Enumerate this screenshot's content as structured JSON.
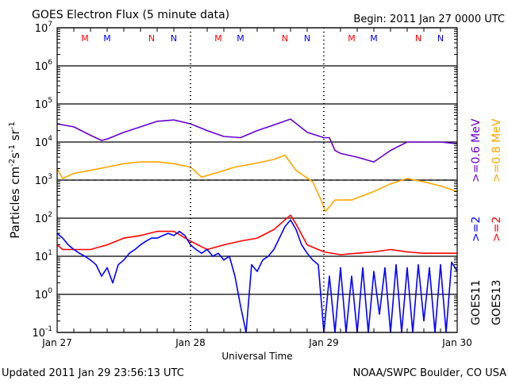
{
  "chart_data": {
    "type": "line",
    "title": "GOES Electron Flux (5 minute data)",
    "begin_label": "Begin: 2011 Jan 27 0000 UTC",
    "xlabel": "Universal Time",
    "ylabel": "Particles cm-2s-1sr-1",
    "ylabel_parts": {
      "base": "Particles cm",
      "e1": "-2",
      "s": "s",
      "e2": "-1",
      "sr": " sr",
      "e3": "-1"
    },
    "xlim_hours": [
      0,
      72
    ],
    "ylim": [
      0.1,
      10000000
    ],
    "y_scale": "log",
    "y_ticks": [
      {
        "base": "10",
        "exp": "7"
      },
      {
        "base": "10",
        "exp": "6"
      },
      {
        "base": "10",
        "exp": "5"
      },
      {
        "base": "10",
        "exp": "4"
      },
      {
        "base": "10",
        "exp": "3"
      },
      {
        "base": "10",
        "exp": "2"
      },
      {
        "base": "10",
        "exp": "1"
      },
      {
        "base": "10",
        "exp": "0"
      },
      {
        "base": "10",
        "exp": "-1"
      }
    ],
    "x_ticks": [
      {
        "hour": 0,
        "label": "Jan 27"
      },
      {
        "hour": 24,
        "label": "Jan 28"
      },
      {
        "hour": 48,
        "label": "Jan 29"
      },
      {
        "hour": 72,
        "label": "Jan 30"
      }
    ],
    "grid": "horizontal per decade",
    "threshold": {
      "value": 1000,
      "style": "dashed"
    },
    "markers": [
      {
        "hour": 5,
        "label": "M",
        "color": "#ff0000"
      },
      {
        "hour": 9,
        "label": "M",
        "color": "#0000ff"
      },
      {
        "hour": 17,
        "label": "N",
        "color": "#ff0000"
      },
      {
        "hour": 21,
        "label": "N",
        "color": "#0000ff"
      },
      {
        "hour": 29,
        "label": "M",
        "color": "#ff0000"
      },
      {
        "hour": 33,
        "label": "M",
        "color": "#0000ff"
      },
      {
        "hour": 41,
        "label": "N",
        "color": "#ff0000"
      },
      {
        "hour": 45,
        "label": "N",
        "color": "#0000ff"
      },
      {
        "hour": 53,
        "label": "M",
        "color": "#ff0000"
      },
      {
        "hour": 57,
        "label": "M",
        "color": "#0000ff"
      },
      {
        "hour": 65,
        "label": "N",
        "color": "#ff0000"
      },
      {
        "hour": 69,
        "label": "N",
        "color": "#0000ff"
      }
    ],
    "legend": {
      "placement": "right",
      "col1": {
        "energy_a": ">=0.6 MeV",
        "energy_b": ">=2",
        "sat": "GOES11"
      },
      "col2": {
        "energy_a": ">=0.8 MeV",
        "energy_b": ">=2",
        "sat": "GOES13"
      }
    },
    "series": [
      {
        "name": "GOES13 >=0.6 MeV",
        "color": "#6600cc",
        "points": [
          [
            0,
            30000
          ],
          [
            3,
            25000
          ],
          [
            6,
            15000
          ],
          [
            8,
            11000
          ],
          [
            9,
            12000
          ],
          [
            12,
            18000
          ],
          [
            15,
            25000
          ],
          [
            18,
            35000
          ],
          [
            21,
            38000
          ],
          [
            24,
            30000
          ],
          [
            27,
            20000
          ],
          [
            30,
            14000
          ],
          [
            33,
            13000
          ],
          [
            36,
            20000
          ],
          [
            39,
            28000
          ],
          [
            42,
            40000
          ],
          [
            45,
            18000
          ],
          [
            48,
            13000
          ],
          [
            49,
            13000
          ],
          [
            50,
            6000
          ],
          [
            51,
            5000
          ],
          [
            54,
            4000
          ],
          [
            57,
            3000
          ],
          [
            60,
            6000
          ],
          [
            63,
            10000
          ],
          [
            66,
            10000
          ],
          [
            69,
            10000
          ],
          [
            72,
            9000
          ]
        ]
      },
      {
        "name": "GOES13 >=0.8 MeV",
        "color": "#ffa500",
        "points": [
          [
            0,
            2000
          ],
          [
            1,
            1100
          ],
          [
            3,
            1500
          ],
          [
            6,
            1800
          ],
          [
            9,
            2200
          ],
          [
            12,
            2700
          ],
          [
            15,
            3000
          ],
          [
            18,
            3000
          ],
          [
            21,
            2700
          ],
          [
            24,
            2200
          ],
          [
            26,
            1200
          ],
          [
            29,
            1600
          ],
          [
            32,
            2200
          ],
          [
            36,
            2800
          ],
          [
            39,
            3500
          ],
          [
            41,
            4500
          ],
          [
            43,
            1800
          ],
          [
            46,
            900
          ],
          [
            47.5,
            300
          ],
          [
            48.3,
            150
          ],
          [
            50,
            300
          ],
          [
            53,
            300
          ],
          [
            57,
            500
          ],
          [
            60,
            800
          ],
          [
            63,
            1100
          ],
          [
            66,
            900
          ],
          [
            69,
            700
          ],
          [
            72,
            500
          ]
        ]
      },
      {
        "name": "GOES13 >=2 MeV",
        "color": "#ff0000",
        "points": [
          [
            0,
            20
          ],
          [
            1,
            15
          ],
          [
            3,
            15
          ],
          [
            6,
            15
          ],
          [
            9,
            20
          ],
          [
            12,
            30
          ],
          [
            15,
            35
          ],
          [
            18,
            45
          ],
          [
            21,
            45
          ],
          [
            24,
            25
          ],
          [
            27,
            15
          ],
          [
            30,
            20
          ],
          [
            33,
            25
          ],
          [
            36,
            30
          ],
          [
            39,
            50
          ],
          [
            41,
            90
          ],
          [
            42,
            120
          ],
          [
            43,
            70
          ],
          [
            45,
            20
          ],
          [
            48,
            13
          ],
          [
            51,
            11
          ],
          [
            54,
            12
          ],
          [
            57,
            13
          ],
          [
            60,
            15
          ],
          [
            63,
            13
          ],
          [
            66,
            12
          ],
          [
            69,
            12
          ],
          [
            72,
            12
          ]
        ]
      },
      {
        "name": "GOES11 >=2 MeV",
        "color": "#0000ff",
        "points": [
          [
            0,
            40
          ],
          [
            1,
            30
          ],
          [
            2,
            20
          ],
          [
            3,
            15
          ],
          [
            4,
            12
          ],
          [
            5,
            10
          ],
          [
            6,
            8
          ],
          [
            7,
            6
          ],
          [
            8,
            3
          ],
          [
            9,
            5
          ],
          [
            10,
            2
          ],
          [
            11,
            6
          ],
          [
            12,
            8
          ],
          [
            13,
            12
          ],
          [
            14,
            15
          ],
          [
            15,
            20
          ],
          [
            16,
            25
          ],
          [
            17,
            30
          ],
          [
            18,
            30
          ],
          [
            19,
            35
          ],
          [
            20,
            40
          ],
          [
            21,
            35
          ],
          [
            22,
            45
          ],
          [
            23,
            35
          ],
          [
            24,
            20
          ],
          [
            25,
            15
          ],
          [
            26,
            12
          ],
          [
            27,
            15
          ],
          [
            28,
            10
          ],
          [
            29,
            12
          ],
          [
            30,
            8
          ],
          [
            31,
            10
          ],
          [
            32,
            3
          ],
          [
            33,
            0.5
          ],
          [
            34,
            0.1
          ],
          [
            35,
            6
          ],
          [
            36,
            4
          ],
          [
            37,
            8
          ],
          [
            38,
            10
          ],
          [
            39,
            15
          ],
          [
            40,
            30
          ],
          [
            41,
            60
          ],
          [
            42,
            90
          ],
          [
            43,
            50
          ],
          [
            44,
            20
          ],
          [
            45,
            12
          ],
          [
            46,
            8
          ],
          [
            47,
            6
          ],
          [
            48,
            0.1
          ],
          [
            49,
            3
          ],
          [
            50,
            0.1
          ],
          [
            51,
            5
          ],
          [
            52,
            0.1
          ],
          [
            53,
            3
          ],
          [
            54,
            0.1
          ],
          [
            55,
            5
          ],
          [
            56,
            0.1
          ],
          [
            57,
            4
          ],
          [
            58,
            0.3
          ],
          [
            59,
            5
          ],
          [
            60,
            0.1
          ],
          [
            61,
            6
          ],
          [
            62,
            0.1
          ],
          [
            63,
            5
          ],
          [
            64,
            0.1
          ],
          [
            65,
            6
          ],
          [
            66,
            0.2
          ],
          [
            67,
            5
          ],
          [
            68,
            0.1
          ],
          [
            69,
            6
          ],
          [
            70,
            0.1
          ],
          [
            71,
            7
          ],
          [
            72,
            4
          ]
        ]
      }
    ]
  },
  "footer": {
    "updated": "Updated 2011 Jan 29 23:56:13 UTC",
    "credit": "NOAA/SWPC Boulder, CO USA"
  }
}
